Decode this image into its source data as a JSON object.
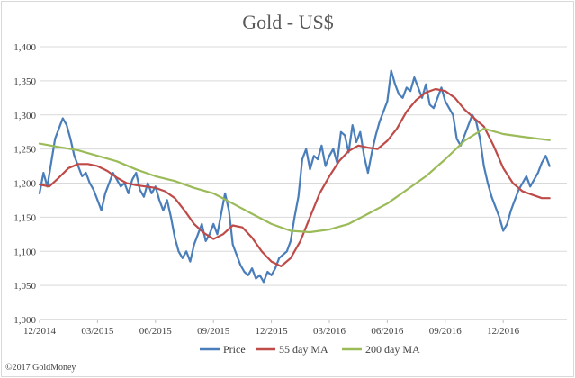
{
  "chart_data": {
    "type": "line",
    "title": "Gold - US$",
    "xlabel": "",
    "ylabel": "",
    "ylim": [
      1000,
      1400
    ],
    "yticks": [
      "1,000",
      "1,050",
      "1,100",
      "1,150",
      "1,200",
      "1,250",
      "1,300",
      "1,350",
      "1,400"
    ],
    "ytick_values": [
      1000,
      1050,
      1100,
      1150,
      1200,
      1250,
      1300,
      1350,
      1400
    ],
    "xlim": [
      "2014-12",
      "2017-03"
    ],
    "xticks": [
      "12/2014",
      "03/2015",
      "06/2015",
      "09/2015",
      "12/2015",
      "03/2016",
      "06/2016",
      "09/2016",
      "12/2016"
    ],
    "xtick_months": [
      0,
      3,
      6,
      9,
      12,
      15,
      18,
      21,
      24
    ],
    "x_months_end": 27.3,
    "grid": "horizontal",
    "legend": "bottom",
    "series": [
      {
        "name": "Price",
        "color": "#4a7ebb",
        "width": 2.2,
        "points": [
          [
            0.0,
            1185
          ],
          [
            0.2,
            1215
          ],
          [
            0.4,
            1195
          ],
          [
            0.6,
            1230
          ],
          [
            0.8,
            1265
          ],
          [
            1.0,
            1280
          ],
          [
            1.2,
            1295
          ],
          [
            1.4,
            1285
          ],
          [
            1.6,
            1265
          ],
          [
            1.8,
            1240
          ],
          [
            2.0,
            1225
          ],
          [
            2.2,
            1210
          ],
          [
            2.4,
            1215
          ],
          [
            2.6,
            1200
          ],
          [
            2.8,
            1190
          ],
          [
            3.0,
            1175
          ],
          [
            3.2,
            1160
          ],
          [
            3.4,
            1185
          ],
          [
            3.6,
            1200
          ],
          [
            3.8,
            1215
          ],
          [
            4.0,
            1205
          ],
          [
            4.2,
            1195
          ],
          [
            4.4,
            1200
          ],
          [
            4.6,
            1185
          ],
          [
            4.8,
            1205
          ],
          [
            5.0,
            1215
          ],
          [
            5.2,
            1190
          ],
          [
            5.4,
            1180
          ],
          [
            5.6,
            1200
          ],
          [
            5.8,
            1185
          ],
          [
            6.0,
            1195
          ],
          [
            6.2,
            1175
          ],
          [
            6.4,
            1160
          ],
          [
            6.6,
            1175
          ],
          [
            6.8,
            1150
          ],
          [
            7.0,
            1120
          ],
          [
            7.2,
            1100
          ],
          [
            7.4,
            1090
          ],
          [
            7.6,
            1100
          ],
          [
            7.8,
            1085
          ],
          [
            8.0,
            1110
          ],
          [
            8.2,
            1125
          ],
          [
            8.4,
            1140
          ],
          [
            8.6,
            1115
          ],
          [
            8.8,
            1125
          ],
          [
            9.0,
            1140
          ],
          [
            9.2,
            1125
          ],
          [
            9.4,
            1155
          ],
          [
            9.6,
            1185
          ],
          [
            9.8,
            1160
          ],
          [
            10.0,
            1110
          ],
          [
            10.2,
            1095
          ],
          [
            10.4,
            1080
          ],
          [
            10.6,
            1070
          ],
          [
            10.8,
            1065
          ],
          [
            11.0,
            1075
          ],
          [
            11.2,
            1060
          ],
          [
            11.4,
            1065
          ],
          [
            11.6,
            1055
          ],
          [
            11.8,
            1070
          ],
          [
            12.0,
            1065
          ],
          [
            12.2,
            1075
          ],
          [
            12.4,
            1090
          ],
          [
            12.6,
            1095
          ],
          [
            12.8,
            1100
          ],
          [
            13.0,
            1115
          ],
          [
            13.2,
            1150
          ],
          [
            13.4,
            1180
          ],
          [
            13.6,
            1235
          ],
          [
            13.8,
            1250
          ],
          [
            14.0,
            1220
          ],
          [
            14.2,
            1240
          ],
          [
            14.4,
            1235
          ],
          [
            14.6,
            1255
          ],
          [
            14.8,
            1225
          ],
          [
            15.0,
            1240
          ],
          [
            15.2,
            1250
          ],
          [
            15.4,
            1230
          ],
          [
            15.6,
            1275
          ],
          [
            15.8,
            1270
          ],
          [
            16.0,
            1245
          ],
          [
            16.2,
            1285
          ],
          [
            16.4,
            1260
          ],
          [
            16.6,
            1275
          ],
          [
            16.8,
            1240
          ],
          [
            17.0,
            1215
          ],
          [
            17.2,
            1245
          ],
          [
            17.4,
            1270
          ],
          [
            17.6,
            1290
          ],
          [
            17.8,
            1305
          ],
          [
            18.0,
            1320
          ],
          [
            18.2,
            1365
          ],
          [
            18.4,
            1345
          ],
          [
            18.6,
            1330
          ],
          [
            18.8,
            1325
          ],
          [
            19.0,
            1340
          ],
          [
            19.2,
            1335
          ],
          [
            19.4,
            1355
          ],
          [
            19.6,
            1340
          ],
          [
            19.8,
            1325
          ],
          [
            20.0,
            1345
          ],
          [
            20.2,
            1315
          ],
          [
            20.4,
            1310
          ],
          [
            20.6,
            1325
          ],
          [
            20.8,
            1340
          ],
          [
            21.0,
            1320
          ],
          [
            21.2,
            1310
          ],
          [
            21.4,
            1300
          ],
          [
            21.6,
            1265
          ],
          [
            21.8,
            1255
          ],
          [
            22.0,
            1270
          ],
          [
            22.2,
            1285
          ],
          [
            22.4,
            1300
          ],
          [
            22.6,
            1290
          ],
          [
            22.8,
            1265
          ],
          [
            23.0,
            1225
          ],
          [
            23.2,
            1200
          ],
          [
            23.4,
            1180
          ],
          [
            23.6,
            1165
          ],
          [
            23.8,
            1150
          ],
          [
            24.0,
            1130
          ],
          [
            24.2,
            1140
          ],
          [
            24.4,
            1160
          ],
          [
            24.6,
            1175
          ],
          [
            24.8,
            1190
          ],
          [
            25.0,
            1200
          ],
          [
            25.2,
            1210
          ],
          [
            25.4,
            1195
          ],
          [
            25.6,
            1205
          ],
          [
            25.8,
            1215
          ],
          [
            26.0,
            1230
          ],
          [
            26.2,
            1240
          ],
          [
            26.4,
            1225
          ]
        ]
      },
      {
        "name": "55 day MA",
        "color": "#be4b48",
        "width": 2.2,
        "points": [
          [
            0.0,
            1198
          ],
          [
            0.5,
            1195
          ],
          [
            1.0,
            1208
          ],
          [
            1.5,
            1222
          ],
          [
            2.0,
            1228
          ],
          [
            2.5,
            1228
          ],
          [
            3.0,
            1225
          ],
          [
            3.5,
            1218
          ],
          [
            4.0,
            1208
          ],
          [
            4.5,
            1200
          ],
          [
            5.0,
            1197
          ],
          [
            5.5,
            1195
          ],
          [
            6.0,
            1193
          ],
          [
            6.5,
            1188
          ],
          [
            7.0,
            1178
          ],
          [
            7.5,
            1160
          ],
          [
            8.0,
            1140
          ],
          [
            8.5,
            1127
          ],
          [
            9.0,
            1118
          ],
          [
            9.5,
            1125
          ],
          [
            10.0,
            1138
          ],
          [
            10.5,
            1135
          ],
          [
            11.0,
            1120
          ],
          [
            11.5,
            1100
          ],
          [
            12.0,
            1085
          ],
          [
            12.5,
            1078
          ],
          [
            13.0,
            1090
          ],
          [
            13.5,
            1115
          ],
          [
            14.0,
            1150
          ],
          [
            14.5,
            1185
          ],
          [
            15.0,
            1210
          ],
          [
            15.5,
            1232
          ],
          [
            16.0,
            1247
          ],
          [
            16.5,
            1255
          ],
          [
            17.0,
            1252
          ],
          [
            17.5,
            1250
          ],
          [
            18.0,
            1262
          ],
          [
            18.5,
            1280
          ],
          [
            19.0,
            1305
          ],
          [
            19.5,
            1322
          ],
          [
            20.0,
            1333
          ],
          [
            20.5,
            1338
          ],
          [
            21.0,
            1335
          ],
          [
            21.5,
            1325
          ],
          [
            22.0,
            1308
          ],
          [
            22.5,
            1295
          ],
          [
            23.0,
            1283
          ],
          [
            23.5,
            1255
          ],
          [
            24.0,
            1222
          ],
          [
            24.5,
            1200
          ],
          [
            25.0,
            1188
          ],
          [
            25.5,
            1183
          ],
          [
            26.0,
            1178
          ],
          [
            26.4,
            1178
          ]
        ]
      },
      {
        "name": "200 day MA",
        "color": "#9bbb59",
        "width": 2.2,
        "points": [
          [
            0.0,
            1258
          ],
          [
            1.0,
            1253
          ],
          [
            2.0,
            1248
          ],
          [
            3.0,
            1240
          ],
          [
            4.0,
            1232
          ],
          [
            5.0,
            1220
          ],
          [
            6.0,
            1210
          ],
          [
            7.0,
            1203
          ],
          [
            8.0,
            1193
          ],
          [
            9.0,
            1185
          ],
          [
            10.0,
            1170
          ],
          [
            11.0,
            1155
          ],
          [
            12.0,
            1140
          ],
          [
            13.0,
            1130
          ],
          [
            14.0,
            1128
          ],
          [
            15.0,
            1132
          ],
          [
            16.0,
            1140
          ],
          [
            17.0,
            1155
          ],
          [
            18.0,
            1170
          ],
          [
            19.0,
            1190
          ],
          [
            20.0,
            1210
          ],
          [
            21.0,
            1235
          ],
          [
            22.0,
            1262
          ],
          [
            23.0,
            1280
          ],
          [
            24.0,
            1272
          ],
          [
            25.0,
            1268
          ],
          [
            26.4,
            1263
          ]
        ]
      }
    ]
  },
  "footer": {
    "copyright": "©2017 GoldMoney"
  }
}
